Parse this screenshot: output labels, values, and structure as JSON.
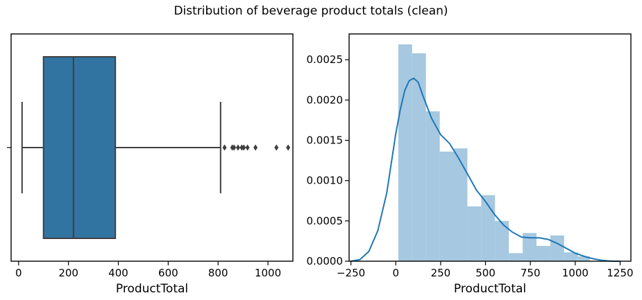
{
  "figure_title": "Distribution of beverage product totals (clean)",
  "chart_data": [
    {
      "type": "box",
      "xlabel": "ProductTotal",
      "ylabel": "",
      "xlim": [
        -30,
        1100
      ],
      "xticks": [
        0,
        200,
        400,
        600,
        800,
        1000
      ],
      "grid": false,
      "colors": {
        "box": "#3274a1",
        "lines": "#3f3f3f"
      },
      "stats": {
        "whisker_low": 14,
        "q1": 100,
        "median": 220,
        "q3": 388,
        "whisker_high": 810
      },
      "outliers": [
        826,
        857,
        864,
        880,
        895,
        903,
        918,
        950,
        1034,
        1081
      ]
    },
    {
      "type": "histogram",
      "xlabel": "ProductTotal",
      "ylabel": "",
      "xlim": [
        -260,
        1310
      ],
      "ylim": [
        0,
        0.00282
      ],
      "xticks": [
        -250,
        0,
        250,
        500,
        750,
        1000,
        1250
      ],
      "xtick_labels": [
        "−250",
        "0",
        "250",
        "500",
        "750",
        "1000",
        "1250"
      ],
      "yticks": [
        0,
        0.0005,
        0.001,
        0.0015,
        0.002,
        0.0025
      ],
      "ytick_labels": [
        "0.0000",
        "0.0005",
        "0.0010",
        "0.0015",
        "0.0020",
        "0.0025"
      ],
      "grid": false,
      "colors": {
        "bars": "#a6c8e0",
        "kde": "#1f77b4"
      },
      "bins": [
        {
          "x0": 14,
          "x1": 91,
          "value": 0.00269
        },
        {
          "x0": 91,
          "x1": 168,
          "value": 0.00258
        },
        {
          "x0": 168,
          "x1": 245,
          "value": 0.00186
        },
        {
          "x0": 245,
          "x1": 322,
          "value": 0.00136
        },
        {
          "x0": 322,
          "x1": 399,
          "value": 0.0014
        },
        {
          "x0": 399,
          "x1": 476,
          "value": 0.00068
        },
        {
          "x0": 476,
          "x1": 553,
          "value": 0.00082
        },
        {
          "x0": 553,
          "x1": 630,
          "value": 0.0005
        },
        {
          "x0": 630,
          "x1": 707,
          "value": 0.0001
        },
        {
          "x0": 707,
          "x1": 784,
          "value": 0.00035
        },
        {
          "x0": 784,
          "x1": 861,
          "value": 0.00019
        },
        {
          "x0": 861,
          "x1": 938,
          "value": 0.00032
        },
        {
          "x0": 938,
          "x1": 1015,
          "value": 0.00011
        },
        {
          "x0": 1015,
          "x1": 1081,
          "value": 6e-05
        }
      ],
      "kde": {
        "x": [
          -250,
          -200,
          -150,
          -100,
          -50,
          0,
          25,
          50,
          75,
          100,
          125,
          150,
          200,
          250,
          300,
          350,
          400,
          450,
          500,
          550,
          600,
          650,
          700,
          750,
          800,
          850,
          900,
          950,
          1000,
          1050,
          1100,
          1150,
          1200,
          1250
        ],
        "y": [
          0.0,
          2e-05,
          0.00012,
          0.00038,
          0.00085,
          0.00158,
          0.00188,
          0.00212,
          0.00224,
          0.00227,
          0.00222,
          0.00206,
          0.00177,
          0.00157,
          0.00146,
          0.00128,
          0.00108,
          0.00088,
          0.00074,
          0.00058,
          0.00045,
          0.00036,
          0.0003,
          0.00029,
          0.00029,
          0.00027,
          0.00022,
          0.00016,
          0.0001,
          6e-05,
          3e-05,
          1e-05,
          0.0,
          0.0
        ]
      }
    }
  ]
}
